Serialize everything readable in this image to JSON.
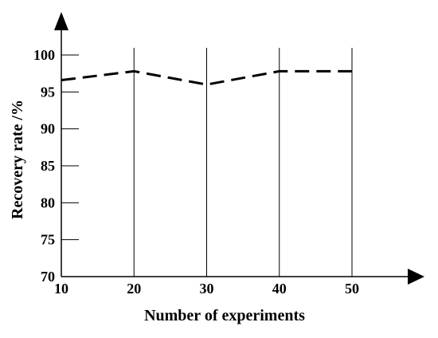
{
  "chart_data": {
    "type": "line",
    "title": "",
    "xlabel": "Number of experiments",
    "ylabel": "Recovery rate /%",
    "x_ticks": [
      "10",
      "20",
      "30",
      "40",
      "50"
    ],
    "y_ticks": [
      "70",
      "75",
      "80",
      "85",
      "90",
      "95",
      "100"
    ],
    "xlim": [
      10,
      50
    ],
    "ylim": [
      70,
      100
    ],
    "grid": "vertical lines at x ticks",
    "legend": "none",
    "series": [
      {
        "line_style": "dashed",
        "color": "#000000",
        "points": [
          {
            "x": 10,
            "y": 96.6
          },
          {
            "x": 20,
            "y": 97.8
          },
          {
            "x": 30,
            "y": 96.0
          },
          {
            "x": 40,
            "y": 97.8
          },
          {
            "x": 50,
            "y": 97.8
          }
        ]
      }
    ]
  }
}
